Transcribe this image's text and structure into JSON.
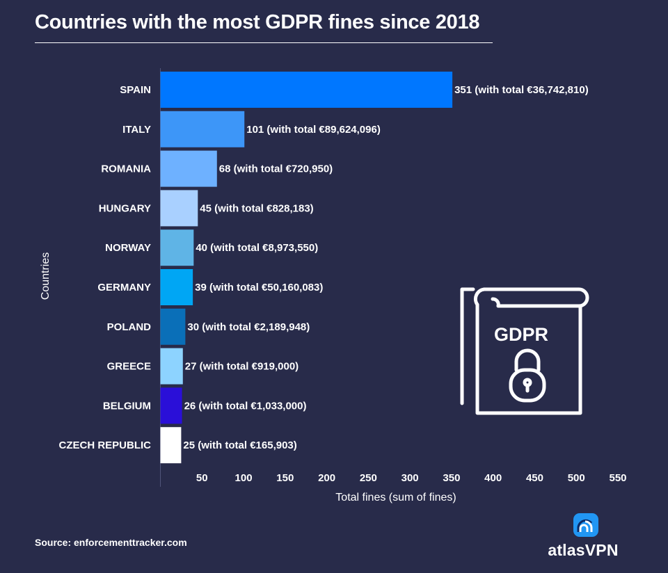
{
  "title": "Countries with the most GDPR fines since 2018",
  "source": "Source: enforcementtracker.com",
  "brand": {
    "name": "atlasVPN",
    "logo_icon": "atlas-vpn-signal-icon"
  },
  "illustration": {
    "label": "GDPR",
    "icon": "gdpr-document-lock-icon"
  },
  "colors": {
    "background": "#282b4a",
    "text": "#ffffff",
    "axis": "#50547a"
  },
  "chart_data": {
    "type": "bar",
    "orientation": "horizontal",
    "title": "Countries with the most GDPR fines since 2018",
    "xlabel": "Total fines (sum of fines)",
    "ylabel": "Countries",
    "xlim": [
      0,
      550
    ],
    "xticks": [
      50,
      100,
      150,
      200,
      250,
      300,
      350,
      400,
      450,
      500,
      550
    ],
    "grid": false,
    "categories": [
      "SPAIN",
      "ITALY",
      "ROMANIA",
      "HUNGARY",
      "NORWAY",
      "GERMANY",
      "POLAND",
      "GREECE",
      "BELGIUM",
      "CZECH REPUBLIC"
    ],
    "values": [
      351,
      101,
      68,
      45,
      40,
      39,
      30,
      27,
      26,
      25
    ],
    "labels": [
      "351 (with total €36,742,810)",
      "101 (with total €89,624,096)",
      "68 (with total €720,950)",
      "45 (with total €828,183)",
      "40 (with total €8,973,550)",
      "39 (with total €50,160,083)",
      "30 (with total €2,189,948)",
      "27 (with total €919,000)",
      "26 (with total €1,033,000)",
      "25 (with total €165,903)"
    ],
    "bar_colors": [
      "#0077ff",
      "#3d96f8",
      "#6eb1ff",
      "#a9d0ff",
      "#5fb4e6",
      "#00a6f4",
      "#0a6fb8",
      "#8dd3ff",
      "#2a0fd8",
      "#ffffff"
    ]
  }
}
